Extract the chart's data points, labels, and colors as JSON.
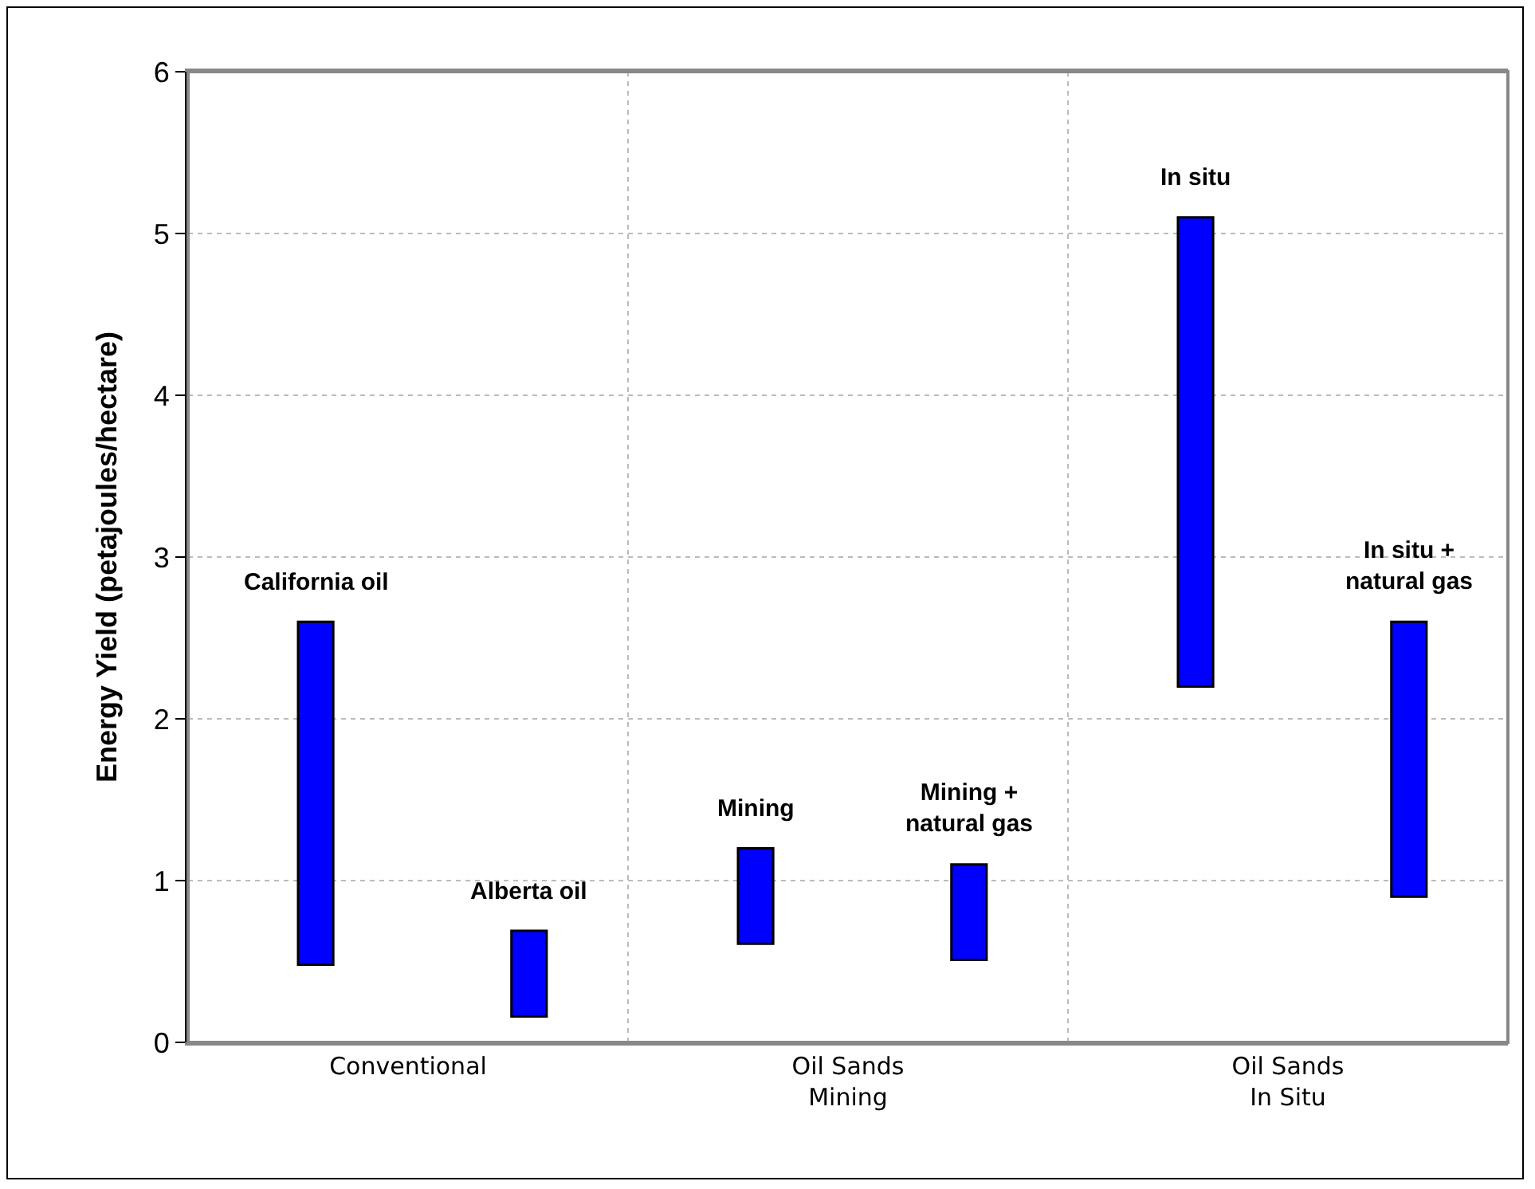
{
  "chart_data": {
    "type": "bar",
    "ylabel": "Energy Yield (petajoules/hectare)",
    "categories": [
      "Conventional",
      "Oil Sands\nMining",
      "Oil Sands\nIn Situ"
    ],
    "series": [
      {
        "color": "#0000ff",
        "values": [
          2.12,
          0.59,
          2.9
        ],
        "base": [
          0.48,
          0.61,
          2.2
        ],
        "value_labels": [
          "California oil",
          "Mining",
          "In situ"
        ]
      },
      {
        "color": "#0000ff",
        "values": [
          0.53,
          0.59,
          1.7
        ],
        "base": [
          0.16,
          0.51,
          0.9
        ],
        "value_labels": [
          "Alberta oil",
          "Mining +\nnatural gas",
          "In situ +\nnatural gas"
        ]
      }
    ],
    "ylim": [
      0,
      6
    ],
    "yticks": [
      0,
      1,
      2,
      3,
      4,
      5,
      6
    ],
    "grid": true
  }
}
